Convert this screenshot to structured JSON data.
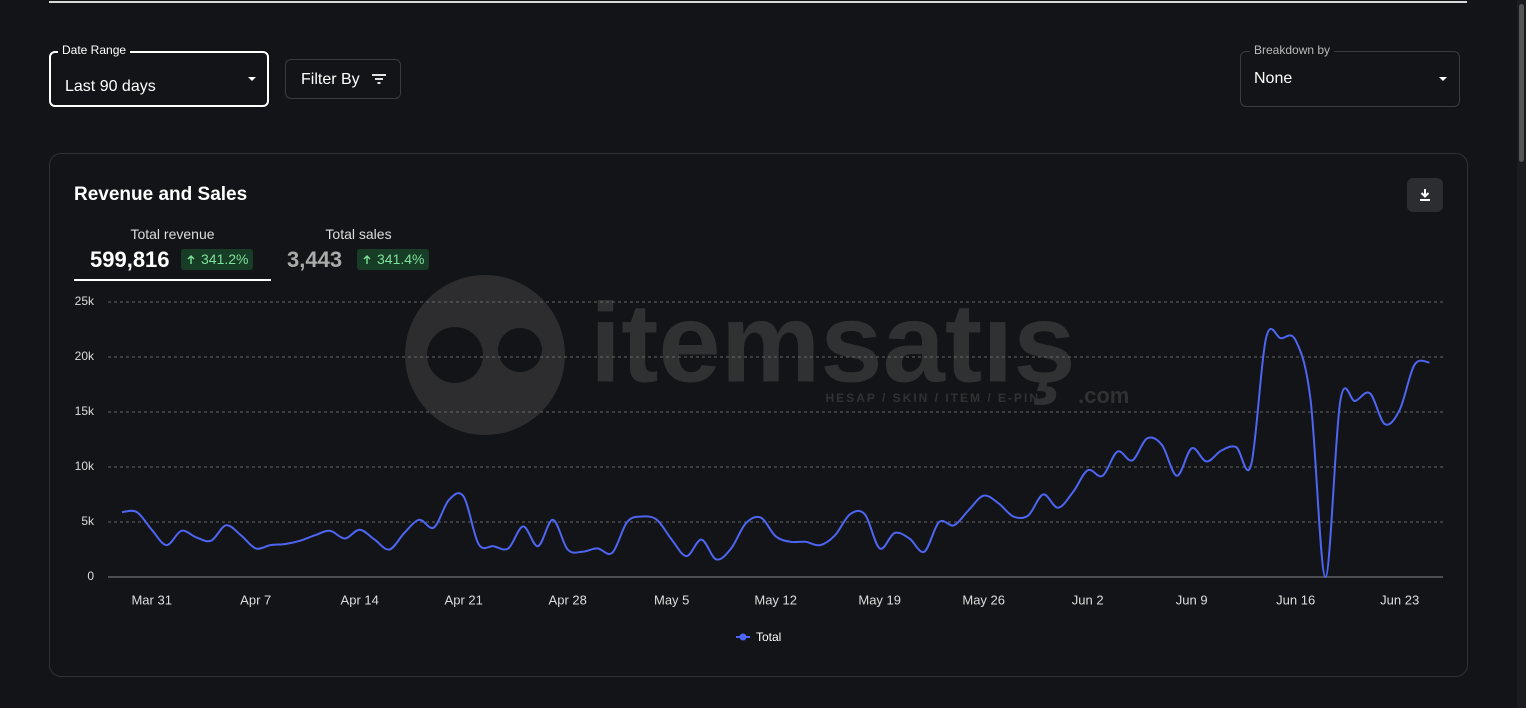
{
  "controls": {
    "date_range_label": "Date Range",
    "date_range_value": "Last 90 days",
    "filter_button": "Filter By",
    "breakdown_label": "Breakdown by",
    "breakdown_value": "None"
  },
  "card": {
    "title": "Revenue and Sales",
    "metrics": [
      {
        "label": "Total revenue",
        "value": "599,816",
        "change": "341.2%"
      },
      {
        "label": "Total sales",
        "value": "3,443",
        "change": "341.4%"
      }
    ]
  },
  "watermark": {
    "brand": "itemsatış",
    "tagline": "HESAP / SKIN / ITEM / E-PIN",
    "suffix": ".com"
  },
  "chart_data": {
    "type": "line",
    "categories": [
      null,
      null,
      "Mar 31",
      null,
      null,
      null,
      null,
      null,
      null,
      "Apr 7",
      null,
      null,
      null,
      null,
      null,
      null,
      "Apr 14",
      null,
      null,
      null,
      null,
      null,
      null,
      "Apr 21",
      null,
      null,
      null,
      null,
      null,
      null,
      "Apr 28",
      null,
      null,
      null,
      null,
      null,
      null,
      "May 5",
      null,
      null,
      null,
      null,
      null,
      null,
      "May 12",
      null,
      null,
      null,
      null,
      null,
      null,
      "May 19",
      null,
      null,
      null,
      null,
      null,
      null,
      "May 26",
      null,
      null,
      null,
      null,
      null,
      null,
      "Jun 2",
      null,
      null,
      null,
      null,
      null,
      null,
      "Jun 9",
      null,
      null,
      null,
      null,
      null,
      null,
      "Jun 16",
      null,
      null,
      null,
      null,
      null,
      null,
      "Jun 23",
      null,
      null
    ],
    "series": [
      {
        "name": "Total",
        "color": "#4d65f2",
        "values": [
          5900,
          5900,
          4300,
          2900,
          4200,
          3600,
          3300,
          4700,
          3800,
          2600,
          2900,
          3000,
          3300,
          3800,
          4200,
          3500,
          4300,
          3400,
          2500,
          4000,
          5200,
          4500,
          7000,
          7300,
          3000,
          2800,
          2600,
          4600,
          2800,
          5200,
          2500,
          2300,
          2600,
          2200,
          5000,
          5500,
          5200,
          3400,
          1900,
          3400,
          1600,
          2600,
          4900,
          5400,
          3700,
          3200,
          3200,
          2900,
          3800,
          5700,
          5700,
          2600,
          4000,
          3500,
          2300,
          5000,
          4700,
          6100,
          7400,
          6700,
          5500,
          5600,
          7500,
          6300,
          7700,
          9700,
          9200,
          11400,
          10600,
          12600,
          12000,
          9200,
          11700,
          10500,
          11500,
          11800,
          10200,
          21700,
          21700,
          21500,
          16100,
          0,
          16000,
          16000,
          16700,
          13900,
          15200,
          19300,
          19500
        ]
      }
    ],
    "ylim": [
      0,
      25000
    ],
    "yticks": [
      {
        "value": 0,
        "label": "0"
      },
      {
        "value": 5000,
        "label": "5k"
      },
      {
        "value": 10000,
        "label": "10k"
      },
      {
        "value": 15000,
        "label": "15k"
      },
      {
        "value": 20000,
        "label": "20k"
      },
      {
        "value": 25000,
        "label": "25k"
      }
    ],
    "grid": true
  }
}
